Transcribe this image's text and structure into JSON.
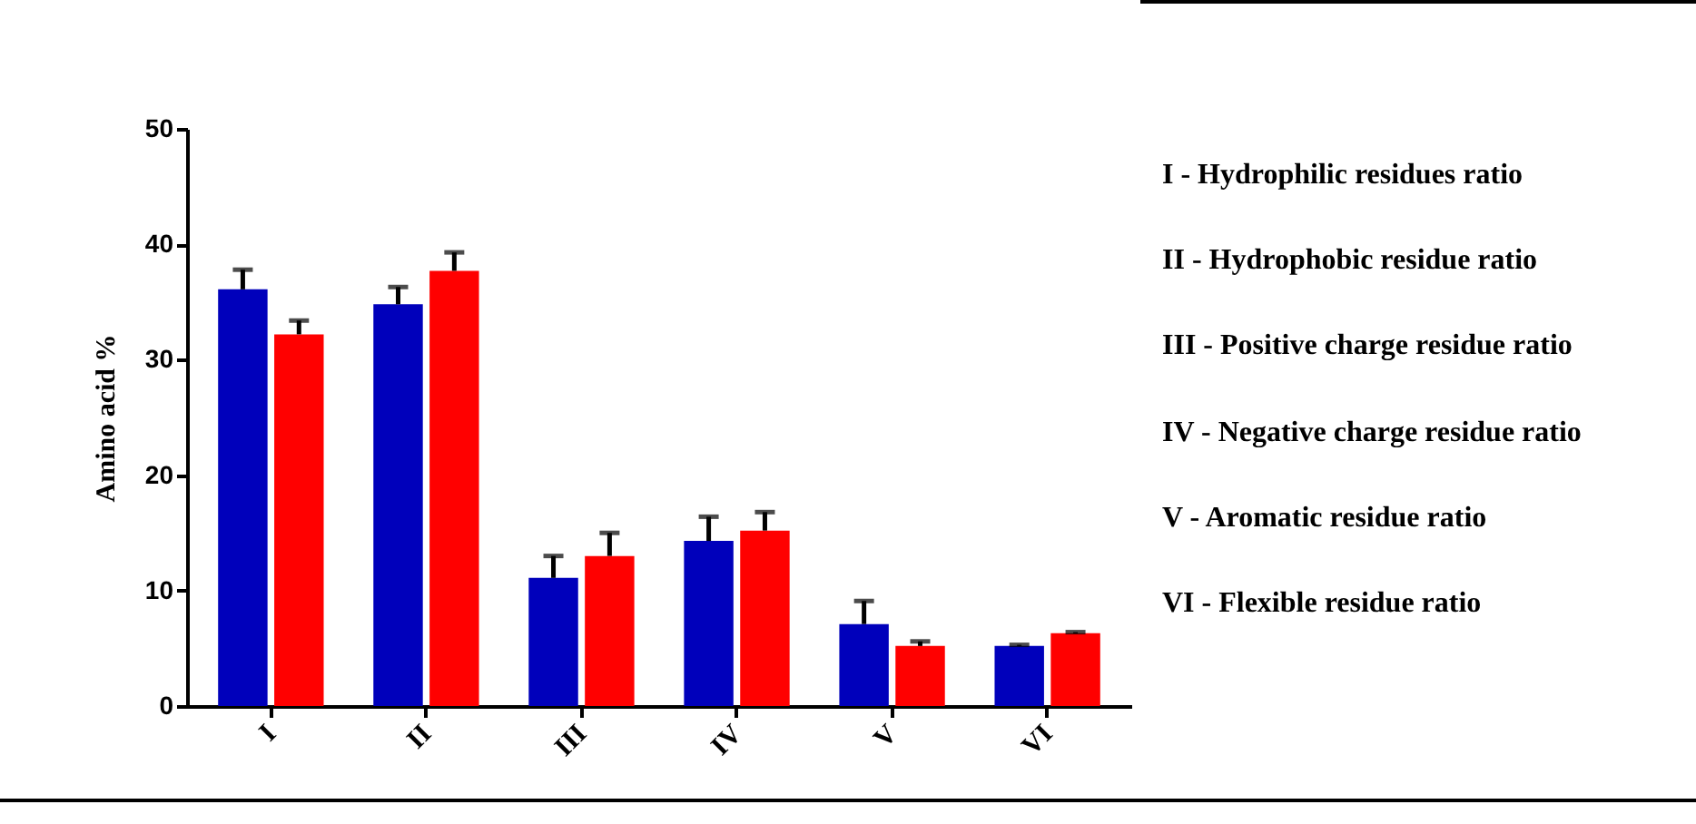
{
  "chart_data": {
    "type": "bar",
    "ylabel": "Amino acid %",
    "categories": [
      "I",
      "II",
      "III",
      "IV",
      "V",
      "VI"
    ],
    "series": [
      {
        "color": "#0000bb",
        "values": [
          36.1,
          34.8,
          11.1,
          14.3,
          7.1,
          5.2
        ],
        "errors": [
          [
            36.1,
            37.8
          ],
          [
            34.8,
            36.3
          ],
          [
            11.1,
            13.0
          ],
          [
            14.3,
            16.4
          ],
          [
            7.1,
            9.1
          ],
          [
            5.2,
            5.3
          ]
        ]
      },
      {
        "color": "#ff0000",
        "values": [
          32.2,
          37.7,
          13.0,
          15.2,
          5.2,
          6.3
        ],
        "errors": [
          [
            32.2,
            33.4
          ],
          [
            37.7,
            39.3
          ],
          [
            13.0,
            15.0
          ],
          [
            15.2,
            16.8
          ],
          [
            5.2,
            5.6
          ],
          [
            6.3,
            6.4
          ]
        ]
      }
    ],
    "ylim": [
      0,
      50
    ],
    "yticks": [
      0,
      10,
      20,
      30,
      40,
      50
    ],
    "grid": false,
    "legend": false,
    "annotations": [
      "I - Hydrophilic residues ratio",
      "II - Hydrophobic residue ratio",
      "III - Positive charge residue ratio",
      "IV - Negative charge residue ratio",
      "V - Aromatic residue ratio",
      "VI - Flexible residue ratio"
    ]
  }
}
